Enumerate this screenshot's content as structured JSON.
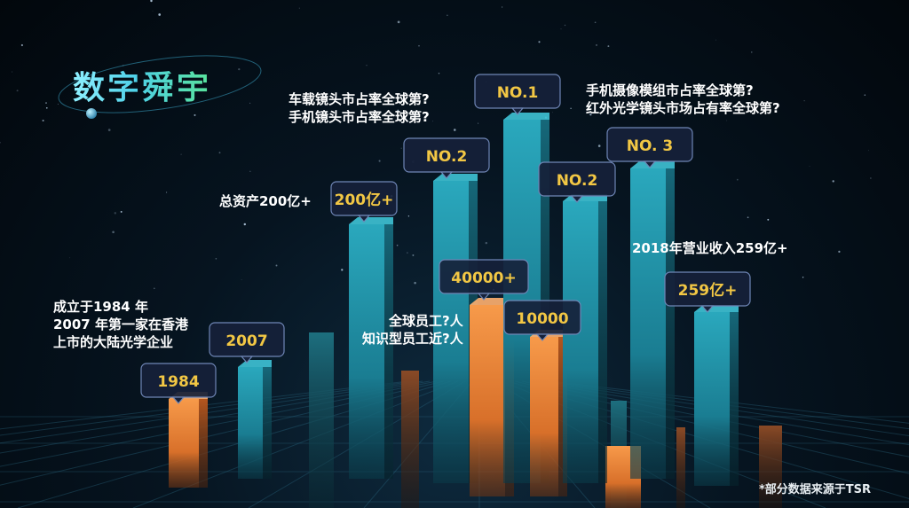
{
  "title": "数字舜宇",
  "footnote": "*部分数据来源于TSR",
  "colors": {
    "teal": "#1f8fa5",
    "orange": "#f08a3a",
    "label_text": "#f2c744",
    "label_bg": "#16213a",
    "label_border": "#6f86b6"
  },
  "icon": "planet-orbit-icon",
  "descriptions": [
    {
      "id": "founded",
      "lines": [
        "成立于1984 年",
        "2007 年第一家在香港",
        "上市的大陆光学企业"
      ]
    },
    {
      "id": "assets",
      "lines": [
        "总资产200亿+"
      ]
    },
    {
      "id": "car-lens",
      "lines": [
        "车载镜头市占率全球第?",
        "手机镜头市占率全球第?"
      ]
    },
    {
      "id": "staff",
      "lines": [
        "全球员工?人",
        "知识型员工近?人"
      ]
    },
    {
      "id": "camera-module",
      "lines": [
        "手机摄像模组市占率全球第?",
        "红外光学镜头市场占有率全球第?"
      ]
    },
    {
      "id": "revenue",
      "lines": [
        "2018年营业收入259亿+"
      ]
    }
  ],
  "chart_data": {
    "type": "bar",
    "title": "",
    "xlabel": "",
    "ylabel": "",
    "labeled_bars": [
      {
        "label": "1984",
        "color": "orange"
      },
      {
        "label": "2007",
        "color": "teal"
      },
      {
        "label": "200亿+",
        "color": "teal"
      },
      {
        "label": "NO.2",
        "color": "teal"
      },
      {
        "label": "40000+",
        "color": "orange"
      },
      {
        "label": "NO.1",
        "color": "teal"
      },
      {
        "label": "10000",
        "color": "orange"
      },
      {
        "label": "NO.2",
        "color": "teal"
      },
      {
        "label": "NO. 3",
        "color": "teal"
      },
      {
        "label": "259亿+",
        "color": "teal"
      }
    ]
  }
}
